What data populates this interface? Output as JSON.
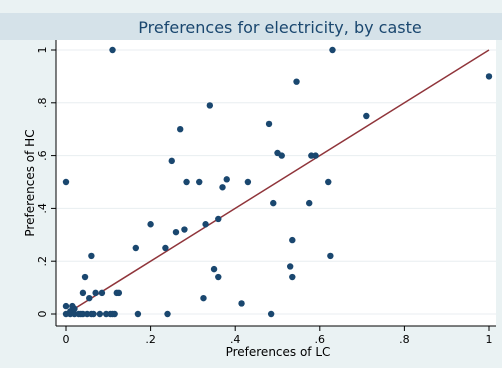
{
  "chart_data": {
    "type": "scatter",
    "title": "Preferences for electricity, by caste",
    "xlabel": "Preferences of LC",
    "ylabel": "Preferences of HC",
    "xlim": [
      0,
      1
    ],
    "ylim": [
      0,
      1
    ],
    "x_ticks": [
      "0",
      ".2",
      ".4",
      ".6",
      ".8",
      "1"
    ],
    "y_ticks": [
      "0",
      ".2",
      ".4",
      ".6",
      ".8",
      "1"
    ],
    "grid": true,
    "colors": {
      "points": "#1a476f",
      "line": "#90353b",
      "title": "#1a476f",
      "background": "#eaf2f3",
      "title_band": "#d5e2e9"
    },
    "line": {
      "from": [
        0,
        0
      ],
      "to": [
        1,
        1
      ]
    },
    "points": [
      [
        0.0,
        0.5
      ],
      [
        0.0,
        0.0
      ],
      [
        0.0,
        0.03
      ],
      [
        0.01,
        0.0
      ],
      [
        0.01,
        0.01
      ],
      [
        0.015,
        0.03
      ],
      [
        0.02,
        0.0
      ],
      [
        0.02,
        0.02
      ],
      [
        0.03,
        0.0
      ],
      [
        0.035,
        0.0
      ],
      [
        0.04,
        0.0
      ],
      [
        0.04,
        0.08
      ],
      [
        0.045,
        0.14
      ],
      [
        0.05,
        0.0
      ],
      [
        0.055,
        0.06
      ],
      [
        0.06,
        0.0
      ],
      [
        0.06,
        0.22
      ],
      [
        0.065,
        0.0
      ],
      [
        0.07,
        0.08
      ],
      [
        0.08,
        0.0
      ],
      [
        0.085,
        0.08
      ],
      [
        0.095,
        0.0
      ],
      [
        0.105,
        0.0
      ],
      [
        0.11,
        0.0
      ],
      [
        0.11,
        1.0
      ],
      [
        0.115,
        0.0
      ],
      [
        0.12,
        0.08
      ],
      [
        0.125,
        0.08
      ],
      [
        0.165,
        0.25
      ],
      [
        0.17,
        0.0
      ],
      [
        0.2,
        0.34
      ],
      [
        0.235,
        0.25
      ],
      [
        0.24,
        0.0
      ],
      [
        0.25,
        0.58
      ],
      [
        0.26,
        0.31
      ],
      [
        0.27,
        0.7
      ],
      [
        0.28,
        0.32
      ],
      [
        0.285,
        0.5
      ],
      [
        0.315,
        0.5
      ],
      [
        0.325,
        0.06
      ],
      [
        0.33,
        0.34
      ],
      [
        0.34,
        0.79
      ],
      [
        0.35,
        0.17
      ],
      [
        0.36,
        0.36
      ],
      [
        0.36,
        0.14
      ],
      [
        0.37,
        0.48
      ],
      [
        0.38,
        0.51
      ],
      [
        0.415,
        0.04
      ],
      [
        0.43,
        0.5
      ],
      [
        0.48,
        0.72
      ],
      [
        0.485,
        0.0
      ],
      [
        0.49,
        0.42
      ],
      [
        0.5,
        0.61
      ],
      [
        0.51,
        0.6
      ],
      [
        0.53,
        0.18
      ],
      [
        0.535,
        0.28
      ],
      [
        0.535,
        0.14
      ],
      [
        0.545,
        0.88
      ],
      [
        0.575,
        0.42
      ],
      [
        0.58,
        0.6
      ],
      [
        0.59,
        0.6
      ],
      [
        0.62,
        0.5
      ],
      [
        0.625,
        0.22
      ],
      [
        0.63,
        1.0
      ],
      [
        0.71,
        0.75
      ],
      [
        1.0,
        0.9
      ]
    ]
  }
}
